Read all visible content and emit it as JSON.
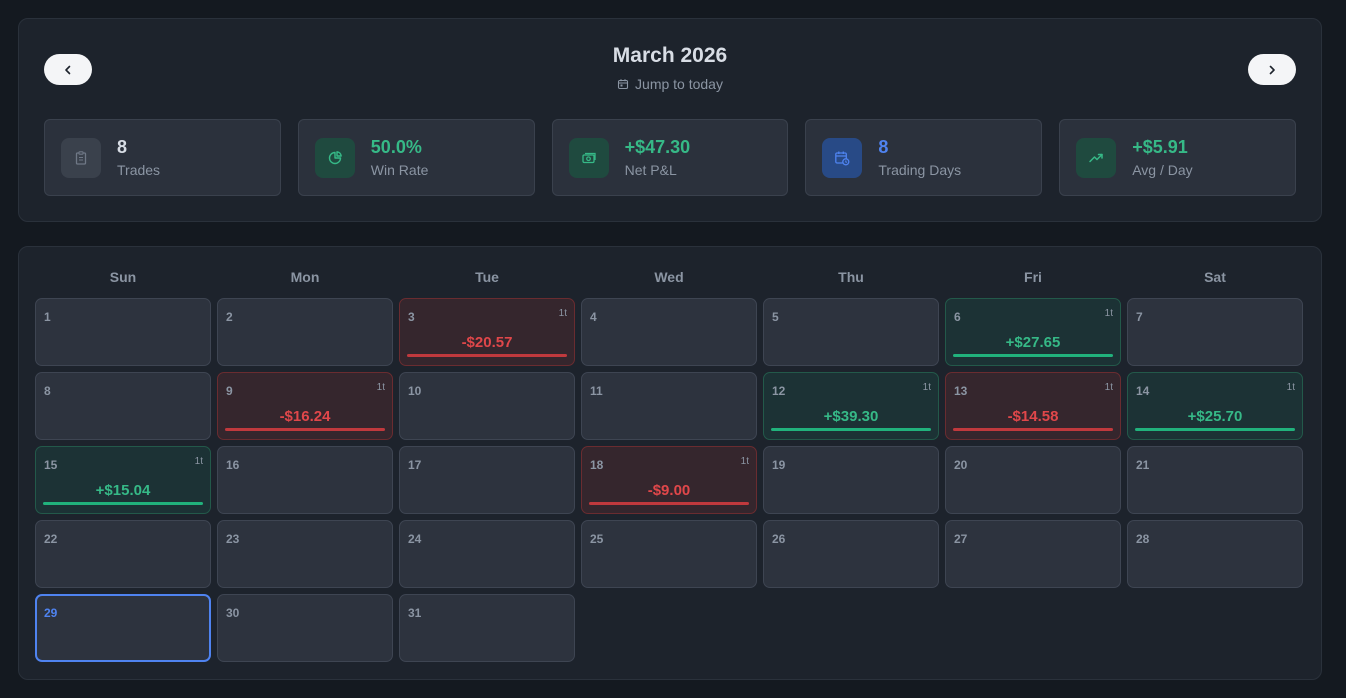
{
  "header": {
    "month_title": "March 2026",
    "jump_label": "Jump to today"
  },
  "colors": {
    "win": "#36b987",
    "loss": "#e0474a",
    "accent": "#4f83f0",
    "muted": "#d8dde5"
  },
  "stats": [
    {
      "value": "8",
      "label": "Trades",
      "icon": "clipboard-icon",
      "tone": "neutral"
    },
    {
      "value": "50.0%",
      "label": "Win Rate",
      "icon": "pie-chart-icon",
      "tone": "win"
    },
    {
      "value": "+$47.30",
      "label": "Net P&L",
      "icon": "cash-icon",
      "tone": "win"
    },
    {
      "value": "8",
      "label": "Trading Days",
      "icon": "calendar-clock-icon",
      "tone": "accent"
    },
    {
      "value": "+$5.91",
      "label": "Avg / Day",
      "icon": "trending-up-icon",
      "tone": "win"
    }
  ],
  "weekdays": [
    "Sun",
    "Mon",
    "Tue",
    "Wed",
    "Thu",
    "Fri",
    "Sat"
  ],
  "leading_blanks": 0,
  "today": 29,
  "days": [
    {
      "day": 1
    },
    {
      "day": 2
    },
    {
      "day": 3,
      "pnl": "-$20.57",
      "count": "1t",
      "result": "loss"
    },
    {
      "day": 4
    },
    {
      "day": 5
    },
    {
      "day": 6,
      "pnl": "+$27.65",
      "count": "1t",
      "result": "win"
    },
    {
      "day": 7
    },
    {
      "day": 8
    },
    {
      "day": 9,
      "pnl": "-$16.24",
      "count": "1t",
      "result": "loss"
    },
    {
      "day": 10
    },
    {
      "day": 11
    },
    {
      "day": 12,
      "pnl": "+$39.30",
      "count": "1t",
      "result": "win"
    },
    {
      "day": 13,
      "pnl": "-$14.58",
      "count": "1t",
      "result": "loss"
    },
    {
      "day": 14,
      "pnl": "+$25.70",
      "count": "1t",
      "result": "win"
    },
    {
      "day": 15,
      "pnl": "+$15.04",
      "count": "1t",
      "result": "win"
    },
    {
      "day": 16
    },
    {
      "day": 17
    },
    {
      "day": 18,
      "pnl": "-$9.00",
      "count": "1t",
      "result": "loss"
    },
    {
      "day": 19
    },
    {
      "day": 20
    },
    {
      "day": 21
    },
    {
      "day": 22
    },
    {
      "day": 23
    },
    {
      "day": 24
    },
    {
      "day": 25
    },
    {
      "day": 26
    },
    {
      "day": 27
    },
    {
      "day": 28
    },
    {
      "day": 29
    },
    {
      "day": 30
    },
    {
      "day": 31
    }
  ]
}
